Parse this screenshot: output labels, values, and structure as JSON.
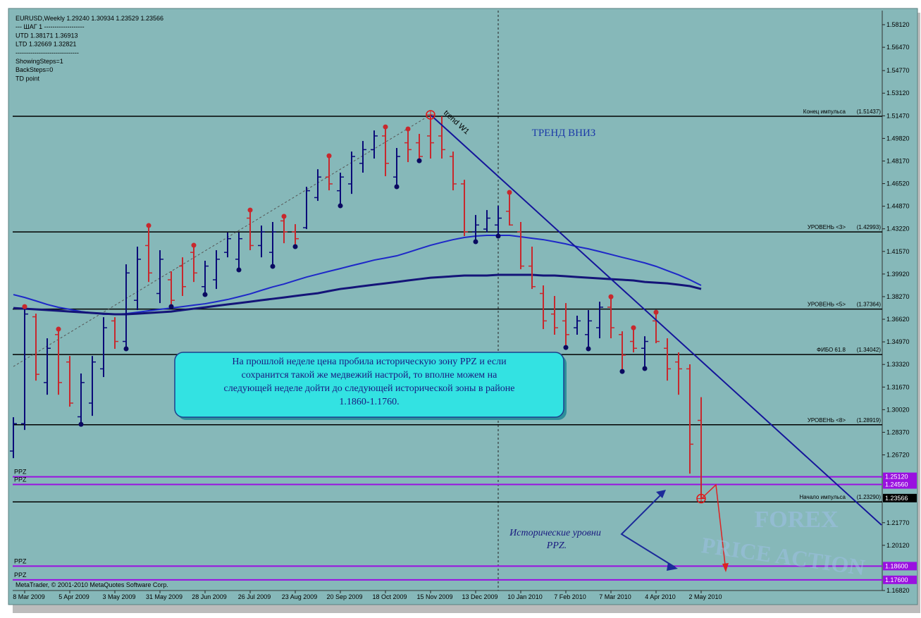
{
  "chart_data": {
    "type": "ohlc",
    "info_lines": [
      "EURUSD,Weekly  1.29240 1.30934 1.23529 1.23566",
      "---     ШАГ 1    -------------------",
      "UTD 1.38171  1.36913",
      "LTD  1.32669  1.32821",
      "------------------------------",
      "ShowingSteps=1",
      "BackSteps=0",
      "TD point"
    ],
    "categories": [
      null,
      "8 Mar 2009",
      null,
      null,
      null,
      "5 Apr 2009",
      null,
      null,
      null,
      "3 May 2009",
      null,
      null,
      null,
      "31 May 2009",
      null,
      null,
      null,
      "28 Jun 2009",
      null,
      null,
      null,
      "26 Jul 2009",
      null,
      null,
      null,
      "23 Aug 2009",
      null,
      null,
      null,
      "20 Sep 2009",
      null,
      null,
      null,
      "18 Oct 2009",
      null,
      null,
      null,
      "15 Nov 2009",
      null,
      null,
      null,
      "13 Dec 2009",
      null,
      null,
      null,
      "10 Jan 2010",
      null,
      null,
      null,
      "7 Feb 2010",
      null,
      null,
      null,
      "7 Mar 2010",
      null,
      null,
      null,
      "4 Apr 2010",
      null,
      null,
      null,
      "2 May 2010"
    ],
    "open": [
      1.27,
      1.29,
      1.368,
      1.32,
      1.355,
      1.335,
      1.295,
      1.305,
      1.33,
      1.365,
      1.35,
      1.38,
      1.42,
      1.385,
      1.395,
      1.405,
      1.415,
      1.39,
      1.395,
      1.415,
      1.41,
      1.44,
      1.42,
      1.415,
      1.438,
      1.43,
      1.433,
      1.455,
      1.47,
      1.46,
      1.465,
      1.48,
      1.49,
      1.5,
      1.47,
      1.495,
      1.495,
      1.5,
      1.5,
      1.485,
      1.465,
      1.43,
      1.432,
      1.435,
      1.445,
      1.43,
      1.405,
      1.385,
      1.37,
      1.365,
      1.36,
      1.355,
      1.36,
      1.375,
      1.355,
      1.35,
      1.345,
      1.365,
      1.345,
      1.335,
      1.33,
      1.2924
    ],
    "high": [
      1.2947,
      1.3754,
      1.3703,
      1.3523,
      1.359,
      1.3394,
      1.3266,
      1.3394,
      1.3677,
      1.3677,
      1.4063,
      1.4192,
      1.4346,
      1.4166,
      1.4012,
      1.4114,
      1.4202,
      1.4089,
      1.4166,
      1.4295,
      1.4295,
      1.4459,
      1.4346,
      1.4372,
      1.4413,
      1.4356,
      1.4629,
      1.4757,
      1.4855,
      1.4732,
      1.4886,
      1.4963,
      1.504,
      1.5066,
      1.4912,
      1.5051,
      1.5015,
      1.5154,
      1.5143,
      1.4886,
      1.468,
      1.4423,
      1.4459,
      1.449,
      1.4588,
      1.4372,
      1.4192,
      1.3909,
      1.3832,
      1.378,
      1.3688,
      1.3729,
      1.379,
      1.3826,
      1.3574,
      1.36,
      1.3538,
      1.3713,
      1.3523,
      1.342,
      1.3333,
      1.30934
    ],
    "low": [
      1.2648,
      1.2854,
      1.3214,
      1.3111,
      1.3111,
      1.3024,
      1.2895,
      1.2957,
      1.324,
      1.3446,
      1.3446,
      1.3729,
      1.3934,
      1.378,
      1.3754,
      1.3832,
      1.3934,
      1.3842,
      1.3883,
      1.4114,
      1.4022,
      1.4166,
      1.4114,
      1.4048,
      1.4217,
      1.4192,
      1.432,
      1.4526,
      1.4603,
      1.449,
      1.4577,
      1.4732,
      1.4835,
      1.4706,
      1.4629,
      1.4809,
      1.4819,
      1.4835,
      1.4835,
      1.4603,
      1.4269,
      1.4228,
      1.4295,
      1.4269,
      1.4346,
      1.4027,
      1.3883,
      1.359,
      1.3549,
      1.3456,
      1.3549,
      1.3446,
      1.3523,
      1.3523,
      1.3281,
      1.342,
      1.3302,
      1.3487,
      1.3214,
      1.3111,
      1.2535,
      1.23529
    ],
    "close": [
      1.29,
      1.37,
      1.326,
      1.345,
      1.32,
      1.305,
      1.32,
      1.335,
      1.36,
      1.35,
      1.4,
      1.41,
      1.4,
      1.41,
      1.38,
      1.39,
      1.4,
      1.405,
      1.41,
      1.425,
      1.425,
      1.42,
      1.43,
      1.43,
      1.43,
      1.425,
      1.46,
      1.47,
      1.465,
      1.47,
      1.485,
      1.49,
      1.5,
      1.48,
      1.485,
      1.49,
      1.485,
      1.495,
      1.49,
      1.465,
      1.43,
      1.435,
      1.44,
      1.44,
      1.435,
      1.405,
      1.39,
      1.365,
      1.36,
      1.355,
      1.365,
      1.365,
      1.375,
      1.36,
      1.34,
      1.345,
      1.35,
      1.35,
      1.33,
      1.33,
      1.275,
      1.23566
    ],
    "up_color": "#0a0a78",
    "down_color": "#c8282d",
    "fractal_up": [
      null,
      1.3754,
      null,
      null,
      1.359,
      null,
      null,
      null,
      null,
      null,
      null,
      null,
      1.4346,
      null,
      null,
      null,
      1.4202,
      null,
      null,
      null,
      null,
      1.4459,
      null,
      null,
      1.4413,
      null,
      null,
      null,
      1.4855,
      null,
      null,
      null,
      null,
      1.5066,
      null,
      1.5051,
      null,
      null,
      null,
      null,
      null,
      null,
      null,
      null,
      1.4588,
      null,
      null,
      null,
      null,
      null,
      null,
      null,
      null,
      1.3826,
      null,
      1.36,
      null,
      1.3713,
      null,
      null,
      null,
      null
    ],
    "fractal_down": [
      null,
      null,
      null,
      null,
      null,
      null,
      1.2895,
      null,
      null,
      null,
      1.3446,
      null,
      null,
      null,
      1.3754,
      null,
      null,
      1.3842,
      null,
      null,
      1.4022,
      null,
      null,
      1.4048,
      null,
      1.4192,
      null,
      null,
      null,
      1.449,
      null,
      null,
      null,
      null,
      1.4629,
      null,
      1.4819,
      null,
      null,
      null,
      null,
      1.4228,
      null,
      1.4269,
      null,
      null,
      null,
      null,
      null,
      1.3456,
      null,
      1.3446,
      null,
      null,
      1.3281,
      null,
      1.3302,
      null,
      null,
      null,
      null,
      null
    ],
    "fractal_up_color": "#c8282d",
    "fractal_down_color": "#0a0a60",
    "moving_averages": [
      {
        "color": "#1e28c8",
        "values": [
          1.3842,
          1.3821,
          1.3796,
          1.377,
          1.3749,
          1.3734,
          1.3718,
          1.3708,
          1.3698,
          1.3698,
          1.3703,
          1.3713,
          1.3724,
          1.3734,
          1.3744,
          1.3754,
          1.3765,
          1.3775,
          1.379,
          1.3806,
          1.3826,
          1.3847,
          1.3873,
          1.3898,
          1.3919,
          1.3945,
          1.397,
          1.3991,
          1.4012,
          1.4032,
          1.4053,
          1.4073,
          1.4094,
          1.4109,
          1.4125,
          1.415,
          1.4176,
          1.4202,
          1.4223,
          1.4243,
          1.4259,
          1.4269,
          1.4274,
          1.4274,
          1.4274,
          1.4264,
          1.4253,
          1.4243,
          1.4228,
          1.4212,
          1.4192,
          1.4176,
          1.4156,
          1.4135,
          1.4114,
          1.4094,
          1.4073,
          1.4048,
          1.4017,
          1.3986,
          1.395,
          1.3909
        ]
      },
      {
        "color": "#141478",
        "values": [
          1.3744,
          1.3739,
          1.3734,
          1.3729,
          1.3724,
          1.3718,
          1.3713,
          1.3708,
          1.3703,
          1.3698,
          1.3698,
          1.3703,
          1.3708,
          1.3713,
          1.3718,
          1.3729,
          1.3739,
          1.3749,
          1.376,
          1.377,
          1.378,
          1.379,
          1.3801,
          1.3811,
          1.3821,
          1.3832,
          1.3842,
          1.3852,
          1.3868,
          1.3883,
          1.3893,
          1.3904,
          1.3914,
          1.3924,
          1.3934,
          1.3945,
          1.3955,
          1.3965,
          1.397,
          1.3976,
          1.3981,
          1.3981,
          1.3981,
          1.3986,
          1.3986,
          1.3986,
          1.3986,
          1.3981,
          1.3981,
          1.3976,
          1.397,
          1.3965,
          1.396,
          1.3955,
          1.395,
          1.3945,
          1.3934,
          1.3929,
          1.3924,
          1.3914,
          1.3904,
          1.3883
        ]
      }
    ],
    "trend_line": {
      "name": "trend W1",
      "x": [
        37,
        77
      ],
      "values": [
        1.5154,
        1.216
      ],
      "color": "#14149a"
    },
    "guide_line": {
      "x": [
        0,
        37
      ],
      "values": [
        1.3317,
        1.5154
      ]
    },
    "cursor_x": 43,
    "circled_points": [
      {
        "x": 37,
        "value": 1.5154
      },
      {
        "x": 61,
        "value": 1.23529
      }
    ],
    "ylim": [
      1.1682,
      1.5915
    ],
    "yticks": [
      {
        "value": 1.5812,
        "label": "1.58120"
      },
      {
        "value": 1.5647,
        "label": "1.56470"
      },
      {
        "value": 1.5477,
        "label": "1.54770"
      },
      {
        "value": 1.5312,
        "label": "1.53120"
      },
      {
        "value": 1.5147,
        "label": "1.51470"
      },
      {
        "value": 1.4982,
        "label": "1.49820"
      },
      {
        "value": 1.4817,
        "label": "1.48170"
      },
      {
        "value": 1.4652,
        "label": "1.46520"
      },
      {
        "value": 1.4487,
        "label": "1.44870"
      },
      {
        "value": 1.4322,
        "label": "1.43220"
      },
      {
        "value": 1.4157,
        "label": "1.41570"
      },
      {
        "value": 1.3992,
        "label": "1.39920"
      },
      {
        "value": 1.3827,
        "label": "1.38270"
      },
      {
        "value": 1.3662,
        "label": "1.36620"
      },
      {
        "value": 1.3497,
        "label": "1.34970"
      },
      {
        "value": 1.3332,
        "label": "1.33320"
      },
      {
        "value": 1.3167,
        "label": "1.31670"
      },
      {
        "value": 1.3002,
        "label": "1.30020"
      },
      {
        "value": 1.2837,
        "label": "1.28370"
      },
      {
        "value": 1.2672,
        "label": "1.26720"
      },
      {
        "value": 1.2177,
        "label": "1.21770"
      },
      {
        "value": 1.2012,
        "label": "1.20120"
      },
      {
        "value": 1.1682,
        "label": "1.16820"
      }
    ],
    "levels": [
      {
        "name": "Конец импульса",
        "value": 1.51437,
        "value_label": "(1.51437)"
      },
      {
        "name": "УРОВЕНЬ <3>",
        "value": 1.42993,
        "value_label": "(1.42993)"
      },
      {
        "name": "УРОВЕНЬ <5>",
        "value": 1.37364,
        "value_label": "(1.37364)"
      },
      {
        "name": "ФИБО 61.8",
        "value": 1.34042,
        "value_label": "(1.34042)"
      },
      {
        "name": "УРОВЕНЬ <8>",
        "value": 1.28919,
        "value_label": "(1.28919)"
      },
      {
        "name": "Начало импульса",
        "value": 1.2329,
        "value_label": "(1.23290)"
      }
    ],
    "ppz": {
      "label": "PPZ",
      "color": "#9a10e0",
      "levels": [
        {
          "value": 1.2512,
          "label": "1.25120"
        },
        {
          "value": 1.2456,
          "label": "1.24560"
        },
        {
          "value": 1.186,
          "label": "1.18600"
        },
        {
          "value": 1.176,
          "label": "1.17600"
        }
      ]
    },
    "current_price": {
      "value": 1.23566,
      "label": "1.23566"
    },
    "annotations": {
      "trend": "ТРЕНД ВНИЗ",
      "note_lines": [
        "На прошлой неделе цена пробила историческую зону PPZ и если",
        "сохранится такой же медвежий настрой, то вполне можем на",
        "следующей неделе дойти до следующей исторической зоны в районе",
        "1.1860-1.1760."
      ],
      "levels_note": [
        "Исторические уровни",
        "PPZ."
      ],
      "watermark": [
        "FOREX",
        "PRICE ACTION"
      ],
      "copyright": "MetaTrader, © 2001-2010 MetaQuotes Software Corp."
    }
  }
}
